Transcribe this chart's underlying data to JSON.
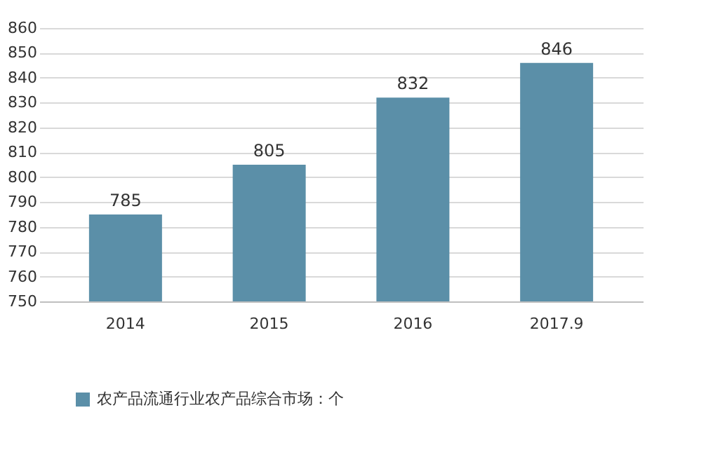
{
  "chart_data": {
    "type": "bar",
    "categories": [
      "2014",
      "2015",
      "2016",
      "2017.9"
    ],
    "series": [
      {
        "name": "农产品流通行业农产品综合市场：个",
        "color": "#5b8fa8",
        "values": [
          785,
          805,
          832,
          846
        ]
      }
    ],
    "ylim": [
      750,
      860
    ],
    "yticks": [
      750,
      760,
      770,
      780,
      790,
      800,
      810,
      820,
      830,
      840,
      850,
      860
    ],
    "grid": "y",
    "legend": "bottom",
    "data_labels": true
  }
}
